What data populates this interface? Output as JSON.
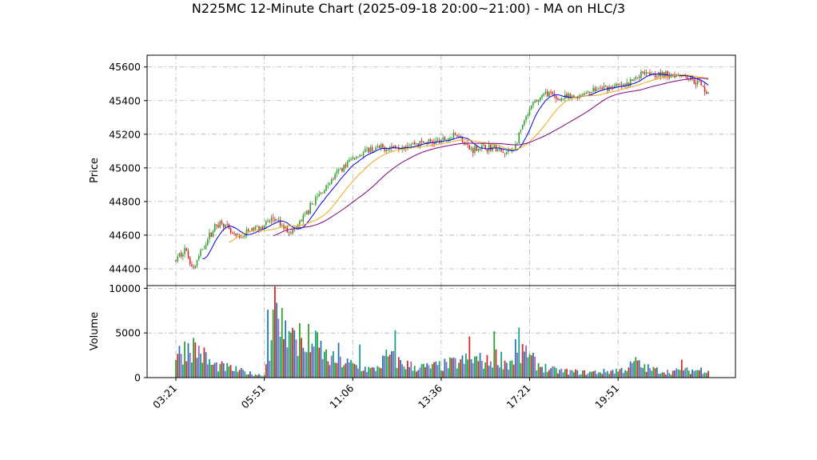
{
  "chart_data": {
    "type": "candlestick",
    "title": "N225MC 12-Minute Chart (2025-09-18 20:00~21:00) - MA on HLC/3",
    "price_panel": {
      "ylabel": "Price",
      "yticks": [
        44400,
        44600,
        44800,
        45000,
        45200,
        45400,
        45600
      ],
      "ylim": [
        44300,
        45670
      ],
      "grid": true
    },
    "volume_panel": {
      "ylabel": "Volume",
      "yticks": [
        0,
        5000,
        10000
      ],
      "ylim": [
        0,
        10300
      ],
      "grid": true
    },
    "x_ticks": [
      "03:21",
      "05:51",
      "11:06",
      "13:36",
      "17:21",
      "19:51"
    ],
    "x_tick_index": [
      0,
      50,
      100,
      150,
      200,
      250
    ],
    "bar_count": 302,
    "price_anchors": [
      [
        0,
        44450
      ],
      [
        5,
        44520
      ],
      [
        10,
        44400
      ],
      [
        15,
        44520
      ],
      [
        22,
        44650
      ],
      [
        26,
        44680
      ],
      [
        32,
        44600
      ],
      [
        36,
        44580
      ],
      [
        42,
        44630
      ],
      [
        50,
        44660
      ],
      [
        55,
        44700
      ],
      [
        60,
        44650
      ],
      [
        66,
        44620
      ],
      [
        72,
        44700
      ],
      [
        78,
        44800
      ],
      [
        86,
        44900
      ],
      [
        92,
        44980
      ],
      [
        100,
        45060
      ],
      [
        110,
        45110
      ],
      [
        120,
        45120
      ],
      [
        130,
        45140
      ],
      [
        140,
        45150
      ],
      [
        150,
        45160
      ],
      [
        160,
        45200
      ],
      [
        166,
        45110
      ],
      [
        172,
        45120
      ],
      [
        180,
        45120
      ],
      [
        186,
        45080
      ],
      [
        192,
        45130
      ],
      [
        196,
        45250
      ],
      [
        202,
        45380
      ],
      [
        210,
        45450
      ],
      [
        215,
        45410
      ],
      [
        225,
        45420
      ],
      [
        235,
        45460
      ],
      [
        245,
        45480
      ],
      [
        255,
        45490
      ],
      [
        265,
        45580
      ],
      [
        275,
        45550
      ],
      [
        285,
        45560
      ],
      [
        295,
        45510
      ],
      [
        301,
        45450
      ]
    ],
    "volume_anchors": [
      [
        0,
        2500
      ],
      [
        8,
        3800
      ],
      [
        14,
        3000
      ],
      [
        20,
        1500
      ],
      [
        28,
        1200
      ],
      [
        36,
        800
      ],
      [
        44,
        400
      ],
      [
        50,
        300
      ],
      [
        52,
        2800
      ],
      [
        56,
        7000
      ],
      [
        60,
        5500
      ],
      [
        66,
        4500
      ],
      [
        72,
        3200
      ],
      [
        80,
        3800
      ],
      [
        86,
        2200
      ],
      [
        95,
        1800
      ],
      [
        104,
        1200
      ],
      [
        112,
        900
      ],
      [
        120,
        2500
      ],
      [
        126,
        1800
      ],
      [
        134,
        1300
      ],
      [
        142,
        1200
      ],
      [
        150,
        1400
      ],
      [
        160,
        1800
      ],
      [
        168,
        2200
      ],
      [
        176,
        1800
      ],
      [
        182,
        2500
      ],
      [
        188,
        1600
      ],
      [
        194,
        2800
      ],
      [
        200,
        2200
      ],
      [
        206,
        1400
      ],
      [
        212,
        900
      ],
      [
        222,
        700
      ],
      [
        232,
        600
      ],
      [
        242,
        700
      ],
      [
        252,
        900
      ],
      [
        260,
        1600
      ],
      [
        268,
        1000
      ],
      [
        278,
        700
      ],
      [
        288,
        800
      ],
      [
        296,
        900
      ],
      [
        301,
        1000
      ]
    ],
    "volume_spikes": [
      [
        52,
        7600
      ],
      [
        56,
        10200
      ],
      [
        60,
        7800
      ],
      [
        58,
        6600
      ],
      [
        62,
        6400
      ],
      [
        67,
        5300
      ],
      [
        70,
        6100
      ],
      [
        75,
        6000
      ],
      [
        77,
        3800
      ],
      [
        92,
        3900
      ],
      [
        104,
        3700
      ],
      [
        124,
        5300
      ],
      [
        166,
        4600
      ],
      [
        180,
        5200
      ],
      [
        194,
        5600
      ],
      [
        192,
        4300
      ],
      [
        198,
        3600
      ],
      [
        260,
        2300
      ],
      [
        286,
        2000
      ]
    ],
    "moving_averages": [
      {
        "color": "#0000ee",
        "window": 10,
        "start": 15
      },
      {
        "color": "#f0a81a",
        "window": 25,
        "start": 30
      },
      {
        "color": "#800080",
        "window": 50,
        "start": 55
      }
    ],
    "colors": {
      "up": "#2ca02c",
      "down": "#d62728",
      "volume": [
        "#2ca02c",
        "#d62728",
        "#1f77b4",
        "#9467bd",
        "#17a085"
      ]
    }
  }
}
